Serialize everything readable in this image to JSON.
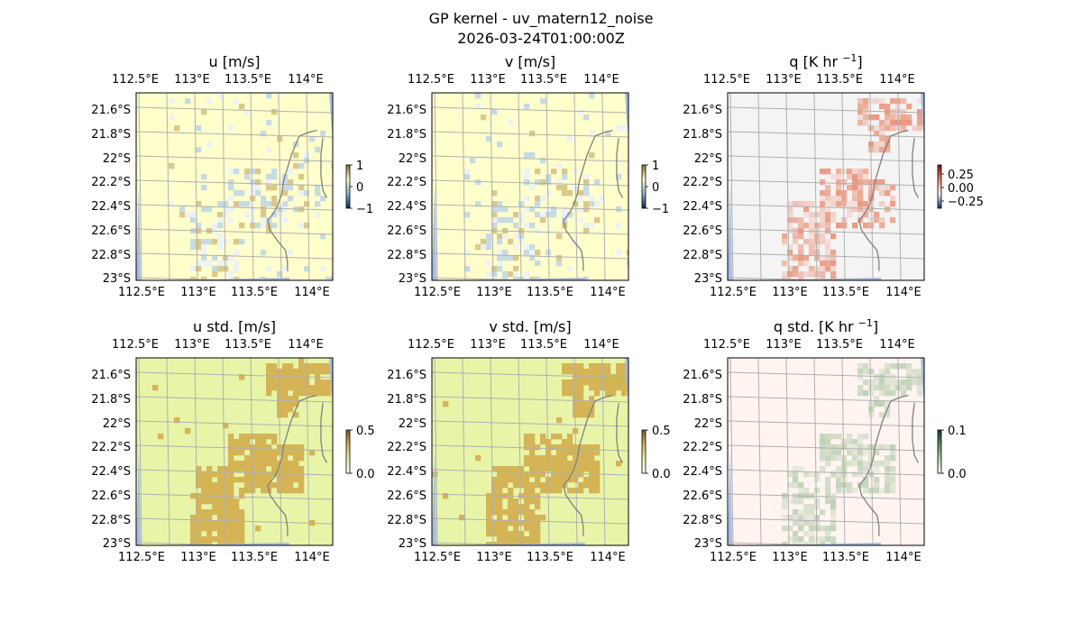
{
  "figure": {
    "title_line1": "GP kernel - uv_matern12_noise",
    "title_line2": "2026-03-24T01:00:00Z"
  },
  "colors": {
    "land": "#ffffcc",
    "ocean": "#a5bde3",
    "coast": "#808080",
    "grid": "#b0b0b0",
    "std_uv_low": "#e8f5a8",
    "std_uv_high": "#d4b455",
    "std_q_low": "#fff4f0",
    "std_q_high": "#b9cfb2",
    "q_base": "#f4f4f4",
    "q_pos": "#e9866a"
  },
  "chart_data": [
    {
      "type": "heatmap",
      "panel": "u",
      "title": "u [m/s]",
      "x_ticks": [
        "112.5°E",
        "113°E",
        "113.5°E",
        "114°E"
      ],
      "y_ticks": [
        "21.6°S",
        "21.8°S",
        "22°S",
        "22.2°S",
        "22.4°S",
        "22.6°S",
        "22.8°S",
        "23°S"
      ],
      "xlim": [
        112.5,
        114.3
      ],
      "ylim": [
        -23.05,
        -21.5
      ],
      "colorbar": {
        "ticks": [
          "1",
          "0",
          "−1"
        ],
        "range": [
          -1,
          1
        ]
      },
      "field": "sparse noise near zero over land, east side of plotted coast"
    },
    {
      "type": "heatmap",
      "panel": "v",
      "title": "v [m/s]",
      "x_ticks": [
        "112.5°E",
        "113°E",
        "113.5°E",
        "114°E"
      ],
      "y_ticks": [
        "21.6°S",
        "21.8°S",
        "22°S",
        "22.2°S",
        "22.4°S",
        "22.6°S",
        "22.8°S",
        "23°S"
      ],
      "xlim": [
        112.5,
        114.3
      ],
      "ylim": [
        -23.05,
        -21.5
      ],
      "colorbar": {
        "ticks": [
          "1",
          "0",
          "−1"
        ],
        "range": [
          -1,
          1
        ]
      },
      "field": "sparse noise near zero"
    },
    {
      "type": "heatmap",
      "panel": "q",
      "title": "q [K hr ",
      "title_sup": "−1",
      "title_end": "]",
      "x_ticks": [
        "112.5°E",
        "113°E",
        "113.5°E",
        "114°E"
      ],
      "y_ticks": [
        "21.6°S",
        "21.8°S",
        "22°S",
        "22.2°S",
        "22.4°S",
        "22.6°S",
        "22.8°S",
        "23°S"
      ],
      "xlim": [
        112.5,
        114.3
      ],
      "ylim": [
        -23.05,
        -21.5
      ],
      "colorbar": {
        "ticks": [
          "0.25",
          "0.00",
          "−0.25"
        ],
        "range": [
          -0.35,
          0.35
        ]
      },
      "field": "positive heating patches (orange/red) in the south-central and north-east areas"
    },
    {
      "type": "heatmap",
      "panel": "u_std",
      "title": "u std. [m/s]",
      "x_ticks": [
        "112.5°E",
        "113°E",
        "113.5°E",
        "114°E"
      ],
      "y_ticks": [
        "21.6°S",
        "21.8°S",
        "22°S",
        "22.2°S",
        "22.4°S",
        "22.6°S",
        "22.8°S",
        "23°S"
      ],
      "xlim": [
        112.5,
        114.3
      ],
      "ylim": [
        -23.05,
        -21.5
      ],
      "colorbar": {
        "ticks": [
          "0.5",
          "0.0"
        ],
        "range": [
          0,
          0.5
        ]
      },
      "field": "std ~0.1 background, ~0.4 in the observation gap regions"
    },
    {
      "type": "heatmap",
      "panel": "v_std",
      "title": "v std. [m/s]",
      "x_ticks": [
        "112.5°E",
        "113°E",
        "113.5°E",
        "114°E"
      ],
      "y_ticks": [
        "21.6°S",
        "21.8°S",
        "22°S",
        "22.2°S",
        "22.4°S",
        "22.6°S",
        "22.8°S",
        "23°S"
      ],
      "xlim": [
        112.5,
        114.3
      ],
      "ylim": [
        -23.05,
        -21.5
      ],
      "colorbar": {
        "ticks": [
          "0.5",
          "0.0"
        ],
        "range": [
          0,
          0.5
        ]
      },
      "field": "std ~0.1 background, ~0.4 in the observation gap regions"
    },
    {
      "type": "heatmap",
      "panel": "q_std",
      "title": "q std. [K hr ",
      "title_sup": "−1",
      "title_end": "]",
      "x_ticks": [
        "112.5°E",
        "113°E",
        "113.5°E",
        "114°E"
      ],
      "y_ticks": [
        "21.6°S",
        "21.8°S",
        "22°S",
        "22.2°S",
        "22.4°S",
        "22.6°S",
        "22.8°S",
        "23°S"
      ],
      "xlim": [
        112.5,
        114.3
      ],
      "ylim": [
        -23.05,
        -21.5
      ],
      "colorbar": {
        "ticks": [
          "0.1",
          "0.0"
        ],
        "range": [
          0,
          0.12
        ]
      },
      "field": "std near 0 background, ~0.05 in the observation gap regions"
    }
  ]
}
